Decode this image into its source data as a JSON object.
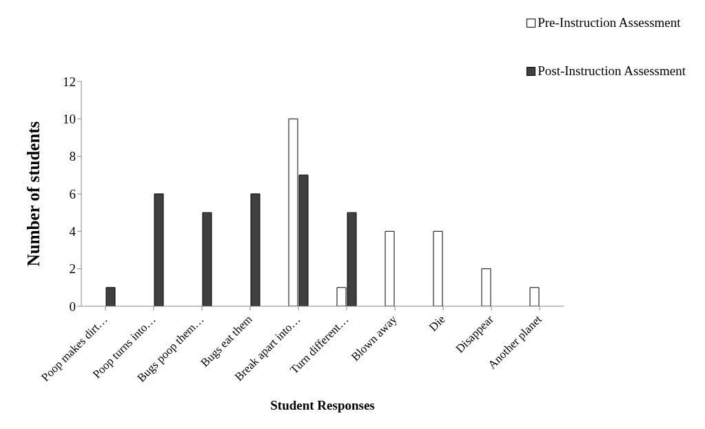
{
  "chart_data": {
    "type": "bar",
    "xlabel": "Student Responses",
    "ylabel": "Number of students",
    "categories": [
      "Poop makes dirt…",
      "Poop turns into…",
      "Bugs poop them…",
      "Bugs eat them",
      "Break apart into…",
      "Turn different…",
      "Blown away",
      "Die",
      "Disappear",
      "Another planet"
    ],
    "series": [
      {
        "name": "Pre-Instruction Assessment",
        "color": "#ffffff",
        "values": [
          0,
          0,
          0,
          0,
          10,
          1,
          4,
          4,
          2,
          1
        ]
      },
      {
        "name": "Post-Instruction Assessment",
        "color": "#404040",
        "values": [
          1,
          6,
          5,
          6,
          7,
          5,
          0,
          0,
          0,
          0
        ]
      }
    ],
    "ylim": [
      0,
      12
    ],
    "yticks": [
      0,
      2,
      4,
      6,
      8,
      10,
      12
    ],
    "legend": "top right"
  }
}
